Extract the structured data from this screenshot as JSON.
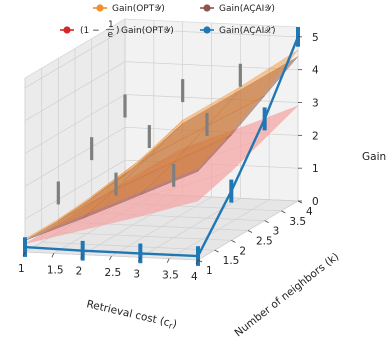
{
  "chart_data": {
    "type": "surface3d",
    "legend": {
      "placement": "top-center",
      "entries": [
        {
          "key": "opt",
          "label": "Gain(OPTₓ₂)",
          "color": "#f28e2b"
        },
        {
          "key": "aeai_y",
          "label": "Gain(AÇAI₂)",
          "color": "#8c564b"
        },
        {
          "key": "lower",
          "label": "(1 − 1/e)Gain(OPT₂)",
          "color": "#d62728"
        },
        {
          "key": "aeai_x",
          "label": "Gain(AÇAIₓ)",
          "color": "#1f77b4"
        }
      ],
      "labels_display": [
        "Gain(OPT𝒴)",
        "Gain(AÇAI𝒴)",
        "Gain(OPT𝒴)",
        "Gain(AÇAI𝒳)"
      ],
      "lower_prefix": "(1 −",
      "lower_frac_num": "1",
      "lower_frac_den": "e",
      "lower_suffix": ")"
    },
    "x_axis": {
      "label": "Retrieval cost (c",
      "label_sub": "r",
      "label_end": ")",
      "ticks": [
        "1",
        "1.5",
        "2",
        "2.5",
        "3",
        "3.5",
        "4"
      ],
      "range": [
        1,
        4
      ]
    },
    "y_axis": {
      "label": "Number of neighbors (k)",
      "ticks": [
        "1",
        "1.5",
        "2",
        "2.5",
        "3",
        "3.5",
        "4"
      ],
      "range": [
        1,
        4
      ]
    },
    "z_axis": {
      "label": "Gain",
      "ticks": [
        "0",
        "1",
        "2",
        "3",
        "4",
        "5"
      ],
      "range": [
        0,
        5.3
      ]
    },
    "grid": true,
    "grid_x": [
      1,
      2,
      3,
      4
    ],
    "grid_y": [
      1,
      2,
      3,
      4
    ],
    "surface_opt_z": [
      [
        0.4,
        1.2,
        2.0,
        2.8
      ],
      [
        0.4,
        1.5,
        2.4,
        3.3
      ],
      [
        0.5,
        1.9,
        2.9,
        3.9
      ],
      [
        0.6,
        2.3,
        3.4,
        4.6
      ]
    ],
    "surface_aeai_y_z": [
      [
        0.35,
        1.1,
        1.9,
        2.7
      ],
      [
        0.35,
        1.4,
        2.3,
        3.2
      ],
      [
        0.45,
        1.8,
        2.8,
        3.8
      ],
      [
        0.55,
        2.2,
        3.3,
        4.4
      ]
    ],
    "lower_bound_z": [
      [
        0.25,
        0.75,
        1.25,
        1.8
      ],
      [
        0.25,
        0.95,
        1.5,
        2.1
      ],
      [
        0.3,
        1.2,
        1.85,
        2.5
      ],
      [
        0.35,
        1.45,
        2.15,
        2.9
      ]
    ],
    "aeai_x_line": {
      "x": [
        1,
        2,
        3,
        4,
        4,
        4,
        4
      ],
      "y": [
        1,
        1,
        1,
        1,
        2,
        3,
        4
      ],
      "z": [
        0.15,
        0.12,
        0.12,
        0.12,
        1.5,
        3.1,
        5.0
      ],
      "err": [
        0.3,
        0.3,
        0.3,
        0.3,
        0.35,
        0.35,
        0.3
      ]
    },
    "interior_errorbars": {
      "x": [
        1,
        1,
        1,
        2,
        2,
        2,
        3,
        3,
        3
      ],
      "y": [
        2,
        3,
        4,
        2,
        3,
        4,
        2,
        3,
        4
      ],
      "z": [
        1.2,
        1.95,
        2.65,
        1.55,
        2.4,
        3.2,
        1.9,
        2.85,
        3.75
      ],
      "err": [
        0.35,
        0.35,
        0.35,
        0.35,
        0.35,
        0.35,
        0.35,
        0.35,
        0.35
      ]
    }
  }
}
